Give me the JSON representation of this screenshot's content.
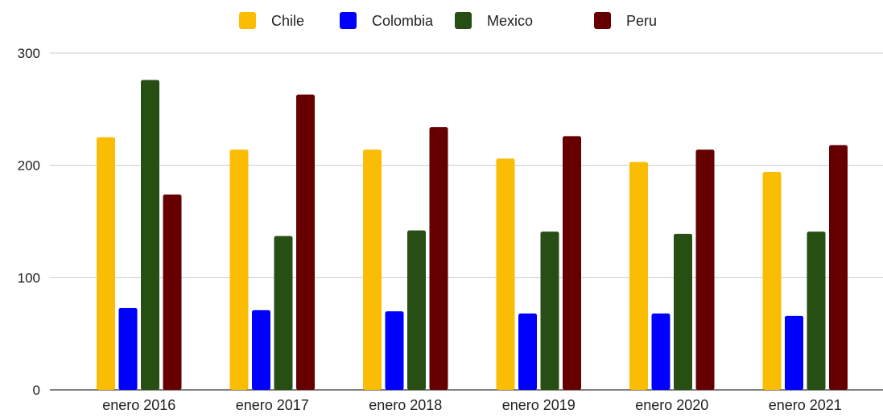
{
  "chart_data": {
    "type": "bar",
    "title": "",
    "xlabel": "",
    "ylabel": "",
    "categories": [
      "enero 2016",
      "enero 2017",
      "enero 2018",
      "enero 2019",
      "enero 2020",
      "enero 2021"
    ],
    "series": [
      {
        "name": "Chile",
        "color": "#fbbc04",
        "values": [
          225,
          214,
          214,
          206,
          203,
          194
        ]
      },
      {
        "name": "Colombia",
        "color": "#0000ff",
        "values": [
          73,
          71,
          70,
          68,
          68,
          66
        ]
      },
      {
        "name": "Mexico",
        "color": "#274e13",
        "values": [
          276,
          137,
          142,
          141,
          139,
          141
        ]
      },
      {
        "name": "Peru",
        "color": "#660000",
        "values": [
          174,
          263,
          234,
          226,
          214,
          218
        ]
      }
    ],
    "ylim": [
      0,
      300
    ],
    "yticks": [
      0,
      100,
      200,
      300
    ],
    "grid": true,
    "legend_position": "top-center"
  }
}
